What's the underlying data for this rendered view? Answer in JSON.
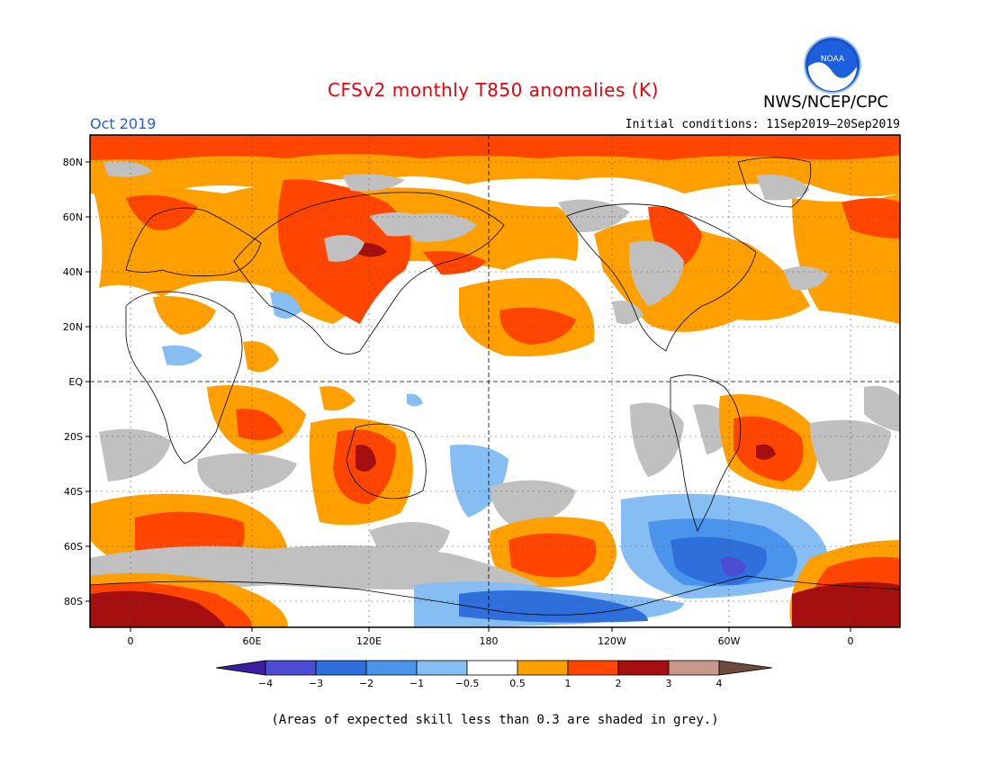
{
  "header": {
    "title": "CFSv2 monthly T850 anomalies (K)",
    "agency": "NWS/NCEP/CPC",
    "logo_text": "NOAA",
    "month": "Oct 2019",
    "initial_conditions": "Initial conditions: 11Sep2019–20Sep2019"
  },
  "map": {
    "projection": "cylindrical equidistant",
    "lon_range": [
      -20,
      380
    ],
    "lat_range": [
      -90,
      90
    ],
    "lat_labels": [
      "80N",
      "60N",
      "40N",
      "20N",
      "EQ",
      "20S",
      "40S",
      "60S",
      "80S"
    ],
    "lon_labels": [
      "0",
      "60E",
      "120E",
      "180",
      "120W",
      "60W",
      "0"
    ],
    "grid": "dotted",
    "skill_mask_color": "#c0c0c0"
  },
  "colorbar": {
    "labels": [
      "−4",
      "−3",
      "−2",
      "−1",
      "−0.5",
      "0.5",
      "1",
      "2",
      "3",
      "4"
    ],
    "colors": [
      "#4b2eb8",
      "#4c4dd4",
      "#2e6fdb",
      "#4a94ec",
      "#86bdf2",
      "#ffffff",
      "#ff9f00",
      "#ff4500",
      "#a50f0f",
      "#c8988a",
      "#6e4a3c"
    ],
    "under_color": "#3b1ea0",
    "over_color": "#6e4a3c"
  },
  "footnote": "(Areas of expected skill less than 0.3 are shaded in grey.)"
}
